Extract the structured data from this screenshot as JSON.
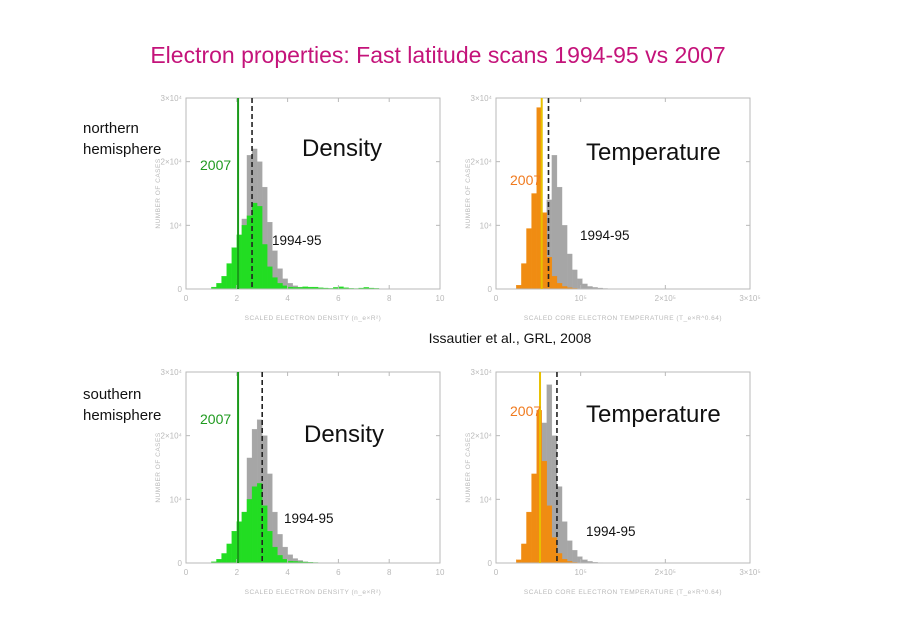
{
  "title": "Electron properties: Fast latitude scans 1994-95 vs 2007",
  "citation": "Issautier et al., GRL, 2008",
  "hemispheres": [
    {
      "label_line1": "northern",
      "label_line2": "hemisphere"
    },
    {
      "label_line1": "southern",
      "label_line2": "hemisphere"
    }
  ],
  "colors": {
    "density_2007": "#22dd22",
    "density_2007_line": "#1a9a1a",
    "temperature_2007": "#f08c12",
    "temperature_2007_line": "#e8c000",
    "label_2007_density": "#1f9a1f",
    "label_2007_temperature": "#f07a1e",
    "series_1994_95": "#a6a6a6",
    "axis": "#b9b9b9"
  },
  "chart_data": [
    {
      "id": "north-density",
      "type": "bar",
      "title": "Density",
      "xlabel": "SCALED ELECTRON DENSITY (n_e×R²)",
      "ylabel": "NUMBER OF CASES",
      "xlim": [
        0,
        10
      ],
      "ylim": [
        0,
        30000
      ],
      "xticks": [
        {
          "v": 0,
          "l": "0"
        },
        {
          "v": 2,
          "l": "2"
        },
        {
          "v": 4,
          "l": "4"
        },
        {
          "v": 6,
          "l": "6"
        },
        {
          "v": 8,
          "l": "8"
        },
        {
          "v": 10,
          "l": "10"
        }
      ],
      "yticks": [
        {
          "v": 0,
          "l": "0"
        },
        {
          "v": 10000,
          "l": "10⁴"
        },
        {
          "v": 20000,
          "l": "2×10⁴"
        },
        {
          "v": 30000,
          "l": "3×10⁴"
        }
      ],
      "bin_width": 0.2,
      "series": [
        {
          "name": "1994-95",
          "color_key": "series_1994_95",
          "start": 2.0,
          "values": [
            1500,
            11000,
            21000,
            22000,
            20000,
            16000,
            10500,
            6000,
            3200,
            1600,
            900,
            500,
            300,
            200,
            150,
            100,
            80,
            60,
            40,
            20
          ]
        },
        {
          "name": "2007",
          "color_key": "density_2007",
          "start": 1.0,
          "values": [
            300,
            900,
            2000,
            4000,
            6500,
            8500,
            10000,
            11500,
            13500,
            13000,
            7000,
            3500,
            1800,
            900,
            500,
            300,
            250,
            250,
            350,
            300,
            300,
            200,
            150,
            100,
            250,
            350,
            200,
            100,
            80,
            150,
            250,
            150,
            100
          ]
        }
      ],
      "vlines": [
        {
          "series": "2007",
          "x": 2.05,
          "style": "solid"
        },
        {
          "series": "1994-95",
          "x": 2.6,
          "style": "dashed"
        }
      ]
    },
    {
      "id": "north-temperature",
      "type": "bar",
      "title": "Temperature",
      "xlabel": "SCALED CORE ELECTRON TEMPERATURE (T_e×R^0.64)",
      "ylabel": "NUMBER OF CASES",
      "xlim": [
        0,
        300000
      ],
      "ylim": [
        0,
        30000
      ],
      "xticks": [
        {
          "v": 0,
          "l": "0"
        },
        {
          "v": 100000,
          "l": "10⁵"
        },
        {
          "v": 200000,
          "l": "2×10⁵"
        },
        {
          "v": 300000,
          "l": "3×10⁵"
        }
      ],
      "yticks": [
        {
          "v": 0,
          "l": "0"
        },
        {
          "v": 10000,
          "l": "10⁴"
        },
        {
          "v": 20000,
          "l": "2×10⁴"
        },
        {
          "v": 30000,
          "l": "3×10⁴"
        }
      ],
      "bin_width": 6000,
      "series": [
        {
          "name": "1994-95",
          "color_key": "series_1994_95",
          "start": 54000,
          "values": [
            2000,
            14000,
            21000,
            16000,
            10000,
            5500,
            3000,
            1600,
            800,
            400,
            250,
            150,
            80
          ]
        },
        {
          "name": "2007",
          "color_key": "temperature_2007",
          "start": 24000,
          "values": [
            600,
            4000,
            9500,
            15000,
            28500,
            12000,
            5000,
            2000,
            900,
            400,
            200,
            100
          ]
        }
      ],
      "vlines": [
        {
          "series": "2007",
          "x": 54000,
          "style": "solid",
          "color_key": "temperature_2007_line"
        },
        {
          "series": "1994-95",
          "x": 62000,
          "style": "dashed"
        }
      ]
    },
    {
      "id": "south-density",
      "type": "bar",
      "title": "Density",
      "xlabel": "SCALED ELECTRON DENSITY (n_e×R²)",
      "ylabel": "NUMBER OF CASES",
      "xlim": [
        0,
        10
      ],
      "ylim": [
        0,
        30000
      ],
      "xticks": [
        {
          "v": 0,
          "l": "0"
        },
        {
          "v": 2,
          "l": "2"
        },
        {
          "v": 4,
          "l": "4"
        },
        {
          "v": 6,
          "l": "6"
        },
        {
          "v": 8,
          "l": "8"
        },
        {
          "v": 10,
          "l": "10"
        }
      ],
      "yticks": [
        {
          "v": 0,
          "l": "0"
        },
        {
          "v": 10000,
          "l": "10⁴"
        },
        {
          "v": 20000,
          "l": "2×10⁴"
        },
        {
          "v": 30000,
          "l": "3×10⁴"
        }
      ],
      "bin_width": 0.2,
      "series": [
        {
          "name": "1994-95",
          "color_key": "series_1994_95",
          "start": 2.0,
          "values": [
            1500,
            8000,
            16500,
            21000,
            22500,
            20000,
            14000,
            8000,
            4500,
            2500,
            1300,
            700,
            400,
            200,
            100
          ]
        },
        {
          "name": "2007",
          "color_key": "density_2007",
          "start": 1.0,
          "values": [
            200,
            600,
            1500,
            3000,
            5000,
            6500,
            8000,
            10000,
            12000,
            12500,
            9000,
            5000,
            2500,
            1200,
            600,
            300,
            250,
            200,
            150,
            100,
            80
          ]
        }
      ],
      "vlines": [
        {
          "series": "2007",
          "x": 2.05,
          "style": "solid"
        },
        {
          "series": "1994-95",
          "x": 3.0,
          "style": "dashed"
        }
      ]
    },
    {
      "id": "south-temperature",
      "type": "bar",
      "title": "Temperature",
      "xlabel": "SCALED CORE ELECTRON TEMPERATURE (T_e×R^0.64)",
      "ylabel": "NUMBER OF CASES",
      "xlim": [
        0,
        300000
      ],
      "ylim": [
        0,
        30000
      ],
      "xticks": [
        {
          "v": 0,
          "l": "0"
        },
        {
          "v": 100000,
          "l": "10⁵"
        },
        {
          "v": 200000,
          "l": "2×10⁵"
        },
        {
          "v": 300000,
          "l": "3×10⁵"
        }
      ],
      "yticks": [
        {
          "v": 0,
          "l": "0"
        },
        {
          "v": 10000,
          "l": "10⁴"
        },
        {
          "v": 20000,
          "l": "2×10⁴"
        },
        {
          "v": 30000,
          "l": "3×10⁴"
        }
      ],
      "bin_width": 6000,
      "series": [
        {
          "name": "1994-95",
          "color_key": "series_1994_95",
          "start": 48000,
          "values": [
            5000,
            22000,
            28000,
            20000,
            12000,
            6500,
            3500,
            2000,
            1000,
            500,
            250,
            120,
            60
          ]
        },
        {
          "name": "2007",
          "color_key": "temperature_2007",
          "start": 24000,
          "values": [
            500,
            3000,
            8000,
            14000,
            24000,
            16000,
            9000,
            4000,
            1500,
            600,
            250,
            100
          ]
        }
      ],
      "vlines": [
        {
          "series": "2007",
          "x": 52000,
          "style": "solid",
          "color_key": "temperature_2007_line"
        },
        {
          "series": "1994-95",
          "x": 72000,
          "style": "dashed"
        }
      ]
    }
  ]
}
